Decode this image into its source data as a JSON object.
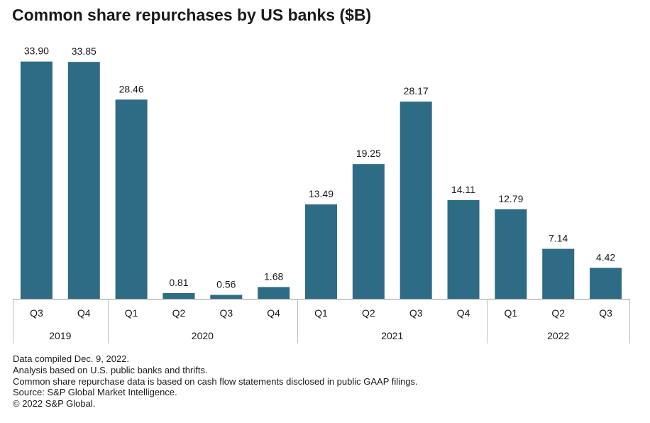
{
  "chart_data": {
    "type": "bar",
    "title": "Common share repurchases by US banks ($B)",
    "xlabel": "",
    "ylabel": "",
    "ylim": [
      0,
      36
    ],
    "grid": false,
    "bar_color": "#2e6b85",
    "categories": [
      "Q3",
      "Q4",
      "Q1",
      "Q2",
      "Q3",
      "Q4",
      "Q1",
      "Q2",
      "Q3",
      "Q4",
      "Q1",
      "Q2",
      "Q3"
    ],
    "values": [
      33.9,
      33.85,
      28.46,
      0.81,
      0.56,
      1.68,
      13.49,
      19.25,
      28.17,
      14.11,
      12.79,
      7.14,
      4.42
    ],
    "value_labels": [
      "33.90",
      "33.85",
      "28.46",
      "0.81",
      "0.56",
      "1.68",
      "13.49",
      "19.25",
      "28.17",
      "14.11",
      "12.79",
      "7.14",
      "4.42"
    ],
    "year_groups": [
      {
        "label": "2019",
        "count": 2
      },
      {
        "label": "2020",
        "count": 4
      },
      {
        "label": "2021",
        "count": 4
      },
      {
        "label": "2022",
        "count": 3
      }
    ]
  },
  "footnotes": [
    "Data compiled Dec. 9, 2022.",
    "Analysis based on U.S. public banks and thrifts.",
    "Common share repurchase data is based on cash flow statements disclosed in public GAAP filings.",
    "Source: S&P Global Market Intelligence.",
    "© 2022 S&P Global."
  ]
}
